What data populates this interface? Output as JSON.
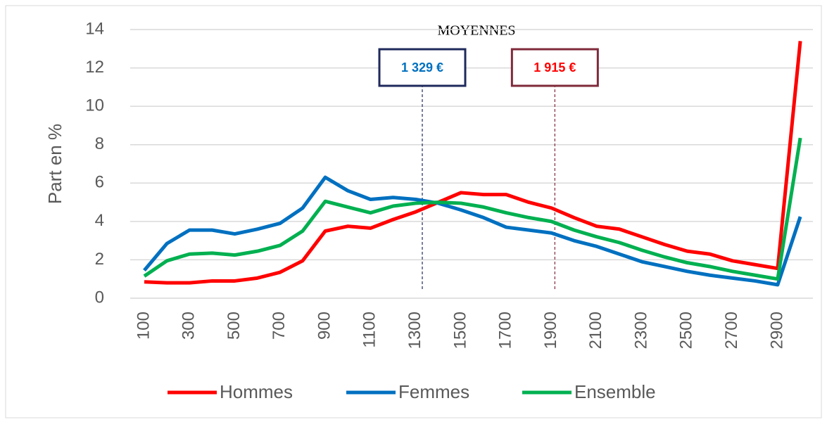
{
  "chart_data": {
    "type": "line",
    "ylabel": "Part en %",
    "categories": [
      "100",
      null,
      "300",
      null,
      "500",
      null,
      "700",
      null,
      "900",
      null,
      "1100",
      null,
      "1300",
      null,
      "1500",
      null,
      "1700",
      null,
      "1900",
      null,
      "2100",
      null,
      "2300",
      null,
      "2500",
      null,
      "2700",
      null,
      "2900",
      null
    ],
    "series": [
      {
        "name": "Hommes",
        "color": "#ff0000",
        "values": [
          0.85,
          0.8,
          0.8,
          0.9,
          0.9,
          1.05,
          1.35,
          1.95,
          3.5,
          3.75,
          3.65,
          4.1,
          4.5,
          5.0,
          5.5,
          5.4,
          5.4,
          5.0,
          4.7,
          4.2,
          3.75,
          3.6,
          3.2,
          2.8,
          2.45,
          2.3,
          1.95,
          1.75,
          1.55,
          13.4
        ]
      },
      {
        "name": "Femmes",
        "color": "#0070c0",
        "values": [
          1.45,
          2.85,
          3.55,
          3.55,
          3.35,
          3.6,
          3.9,
          4.7,
          6.3,
          5.6,
          5.15,
          5.25,
          5.15,
          4.95,
          4.6,
          4.2,
          3.7,
          3.55,
          3.4,
          3.0,
          2.7,
          2.3,
          1.9,
          1.65,
          1.4,
          1.2,
          1.05,
          0.9,
          0.7,
          4.25
        ]
      },
      {
        "name": "Ensemble",
        "color": "#00b050",
        "values": [
          1.15,
          1.95,
          2.3,
          2.35,
          2.25,
          2.45,
          2.75,
          3.5,
          5.05,
          4.75,
          4.45,
          4.8,
          4.95,
          5.0,
          4.95,
          4.75,
          4.45,
          4.2,
          4.0,
          3.55,
          3.2,
          2.9,
          2.5,
          2.15,
          1.85,
          1.65,
          1.4,
          1.2,
          1.0,
          8.35
        ]
      }
    ],
    "ylim": [
      0,
      14
    ],
    "yticks": [
      0,
      2,
      4,
      6,
      8,
      10,
      12,
      14
    ],
    "grid": true,
    "legend": "bottom",
    "annotation_title": "MOYENNES",
    "annotations": [
      {
        "label": "1 329 €",
        "x": 1329,
        "text_color": "#0070c0",
        "border_color": "#1f2a5c"
      },
      {
        "label": "1 915 €",
        "x": 1915,
        "text_color": "#ff0000",
        "border_color": "#7f2a3a"
      }
    ]
  }
}
